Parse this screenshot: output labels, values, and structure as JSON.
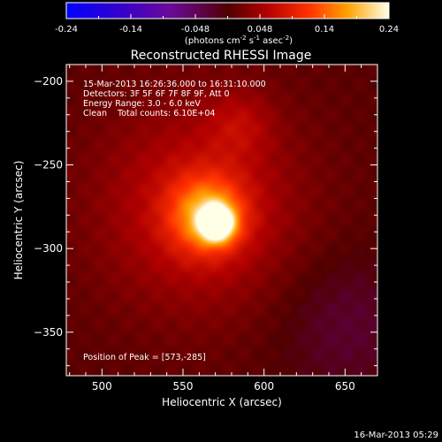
{
  "colorbar": {
    "ticks": [
      "-0.24",
      "-0.14",
      "-0.048",
      "0.048",
      "0.14",
      "0.24"
    ],
    "units_main": "(photons cm",
    "units_sup1": "-2",
    "units_mid1": " s",
    "units_sup2": "-1",
    "units_mid2": " asec",
    "units_sup3": "-2",
    "units_end": ")"
  },
  "chart_data": {
    "type": "heatmap",
    "title": "Reconstructed RHESSI Image",
    "xlabel": "Heliocentric X (arcsec)",
    "ylabel": "Heliocentric Y (arcsec)",
    "xlim": [
      478,
      670
    ],
    "ylim": [
      -376,
      -190
    ],
    "xticks": [
      500,
      550,
      600,
      650
    ],
    "yticks": [
      -200,
      -250,
      -300,
      -350
    ],
    "colorbar_range": [
      -0.24,
      0.24
    ],
    "sources": [
      {
        "x": 571,
        "y": -285,
        "sigma": 7,
        "amp": 0.24
      },
      {
        "x": 565,
        "y": -280,
        "sigma": 16,
        "amp": 0.13
      },
      {
        "x": 560,
        "y": -275,
        "sigma": 45,
        "amp": 0.07
      },
      {
        "x": 585,
        "y": -225,
        "sigma": 14,
        "amp": 0.035
      },
      {
        "x": 650,
        "y": -345,
        "sigma": 30,
        "amp": -0.03
      }
    ],
    "peak_position": [
      573,
      -285
    ],
    "annotations": [
      "15-Mar-2013 16:26:36.000 to 16:31:10.000",
      "Detectors: 3F 5F 6F 7F 8F 9F, Att 0",
      "Energy Range: 3.0 - 6.0 keV",
      "Clean    Total counts: 6.10E+04",
      "Position of Peak = [573,-285]"
    ]
  },
  "footer": {
    "timestamp": "16-Mar-2013 05:29"
  }
}
